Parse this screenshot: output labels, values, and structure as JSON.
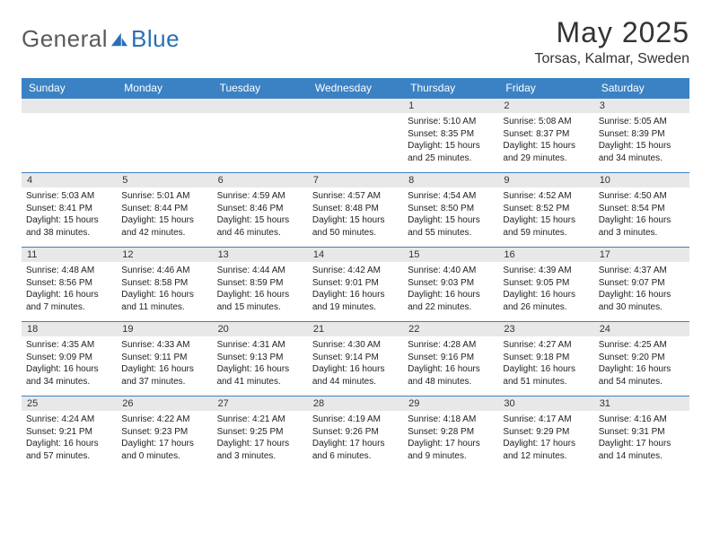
{
  "brand": {
    "text1": "General",
    "text2": "Blue"
  },
  "title": "May 2025",
  "location": "Torsas, Kalmar, Sweden",
  "colors": {
    "headerBar": "#3b82c4",
    "dayNumBg": "#e8e8e8",
    "rule": "#3b82c4",
    "logoGray": "#5a5a5a",
    "logoBlue": "#2a6fb5"
  },
  "dayNames": [
    "Sunday",
    "Monday",
    "Tuesday",
    "Wednesday",
    "Thursday",
    "Friday",
    "Saturday"
  ],
  "weeks": [
    [
      {
        "n": "",
        "sunrise": "",
        "sunset": "",
        "daylight": ""
      },
      {
        "n": "",
        "sunrise": "",
        "sunset": "",
        "daylight": ""
      },
      {
        "n": "",
        "sunrise": "",
        "sunset": "",
        "daylight": ""
      },
      {
        "n": "",
        "sunrise": "",
        "sunset": "",
        "daylight": ""
      },
      {
        "n": "1",
        "sunrise": "Sunrise: 5:10 AM",
        "sunset": "Sunset: 8:35 PM",
        "daylight": "Daylight: 15 hours and 25 minutes."
      },
      {
        "n": "2",
        "sunrise": "Sunrise: 5:08 AM",
        "sunset": "Sunset: 8:37 PM",
        "daylight": "Daylight: 15 hours and 29 minutes."
      },
      {
        "n": "3",
        "sunrise": "Sunrise: 5:05 AM",
        "sunset": "Sunset: 8:39 PM",
        "daylight": "Daylight: 15 hours and 34 minutes."
      }
    ],
    [
      {
        "n": "4",
        "sunrise": "Sunrise: 5:03 AM",
        "sunset": "Sunset: 8:41 PM",
        "daylight": "Daylight: 15 hours and 38 minutes."
      },
      {
        "n": "5",
        "sunrise": "Sunrise: 5:01 AM",
        "sunset": "Sunset: 8:44 PM",
        "daylight": "Daylight: 15 hours and 42 minutes."
      },
      {
        "n": "6",
        "sunrise": "Sunrise: 4:59 AM",
        "sunset": "Sunset: 8:46 PM",
        "daylight": "Daylight: 15 hours and 46 minutes."
      },
      {
        "n": "7",
        "sunrise": "Sunrise: 4:57 AM",
        "sunset": "Sunset: 8:48 PM",
        "daylight": "Daylight: 15 hours and 50 minutes."
      },
      {
        "n": "8",
        "sunrise": "Sunrise: 4:54 AM",
        "sunset": "Sunset: 8:50 PM",
        "daylight": "Daylight: 15 hours and 55 minutes."
      },
      {
        "n": "9",
        "sunrise": "Sunrise: 4:52 AM",
        "sunset": "Sunset: 8:52 PM",
        "daylight": "Daylight: 15 hours and 59 minutes."
      },
      {
        "n": "10",
        "sunrise": "Sunrise: 4:50 AM",
        "sunset": "Sunset: 8:54 PM",
        "daylight": "Daylight: 16 hours and 3 minutes."
      }
    ],
    [
      {
        "n": "11",
        "sunrise": "Sunrise: 4:48 AM",
        "sunset": "Sunset: 8:56 PM",
        "daylight": "Daylight: 16 hours and 7 minutes."
      },
      {
        "n": "12",
        "sunrise": "Sunrise: 4:46 AM",
        "sunset": "Sunset: 8:58 PM",
        "daylight": "Daylight: 16 hours and 11 minutes."
      },
      {
        "n": "13",
        "sunrise": "Sunrise: 4:44 AM",
        "sunset": "Sunset: 8:59 PM",
        "daylight": "Daylight: 16 hours and 15 minutes."
      },
      {
        "n": "14",
        "sunrise": "Sunrise: 4:42 AM",
        "sunset": "Sunset: 9:01 PM",
        "daylight": "Daylight: 16 hours and 19 minutes."
      },
      {
        "n": "15",
        "sunrise": "Sunrise: 4:40 AM",
        "sunset": "Sunset: 9:03 PM",
        "daylight": "Daylight: 16 hours and 22 minutes."
      },
      {
        "n": "16",
        "sunrise": "Sunrise: 4:39 AM",
        "sunset": "Sunset: 9:05 PM",
        "daylight": "Daylight: 16 hours and 26 minutes."
      },
      {
        "n": "17",
        "sunrise": "Sunrise: 4:37 AM",
        "sunset": "Sunset: 9:07 PM",
        "daylight": "Daylight: 16 hours and 30 minutes."
      }
    ],
    [
      {
        "n": "18",
        "sunrise": "Sunrise: 4:35 AM",
        "sunset": "Sunset: 9:09 PM",
        "daylight": "Daylight: 16 hours and 34 minutes."
      },
      {
        "n": "19",
        "sunrise": "Sunrise: 4:33 AM",
        "sunset": "Sunset: 9:11 PM",
        "daylight": "Daylight: 16 hours and 37 minutes."
      },
      {
        "n": "20",
        "sunrise": "Sunrise: 4:31 AM",
        "sunset": "Sunset: 9:13 PM",
        "daylight": "Daylight: 16 hours and 41 minutes."
      },
      {
        "n": "21",
        "sunrise": "Sunrise: 4:30 AM",
        "sunset": "Sunset: 9:14 PM",
        "daylight": "Daylight: 16 hours and 44 minutes."
      },
      {
        "n": "22",
        "sunrise": "Sunrise: 4:28 AM",
        "sunset": "Sunset: 9:16 PM",
        "daylight": "Daylight: 16 hours and 48 minutes."
      },
      {
        "n": "23",
        "sunrise": "Sunrise: 4:27 AM",
        "sunset": "Sunset: 9:18 PM",
        "daylight": "Daylight: 16 hours and 51 minutes."
      },
      {
        "n": "24",
        "sunrise": "Sunrise: 4:25 AM",
        "sunset": "Sunset: 9:20 PM",
        "daylight": "Daylight: 16 hours and 54 minutes."
      }
    ],
    [
      {
        "n": "25",
        "sunrise": "Sunrise: 4:24 AM",
        "sunset": "Sunset: 9:21 PM",
        "daylight": "Daylight: 16 hours and 57 minutes."
      },
      {
        "n": "26",
        "sunrise": "Sunrise: 4:22 AM",
        "sunset": "Sunset: 9:23 PM",
        "daylight": "Daylight: 17 hours and 0 minutes."
      },
      {
        "n": "27",
        "sunrise": "Sunrise: 4:21 AM",
        "sunset": "Sunset: 9:25 PM",
        "daylight": "Daylight: 17 hours and 3 minutes."
      },
      {
        "n": "28",
        "sunrise": "Sunrise: 4:19 AM",
        "sunset": "Sunset: 9:26 PM",
        "daylight": "Daylight: 17 hours and 6 minutes."
      },
      {
        "n": "29",
        "sunrise": "Sunrise: 4:18 AM",
        "sunset": "Sunset: 9:28 PM",
        "daylight": "Daylight: 17 hours and 9 minutes."
      },
      {
        "n": "30",
        "sunrise": "Sunrise: 4:17 AM",
        "sunset": "Sunset: 9:29 PM",
        "daylight": "Daylight: 17 hours and 12 minutes."
      },
      {
        "n": "31",
        "sunrise": "Sunrise: 4:16 AM",
        "sunset": "Sunset: 9:31 PM",
        "daylight": "Daylight: 17 hours and 14 minutes."
      }
    ]
  ]
}
